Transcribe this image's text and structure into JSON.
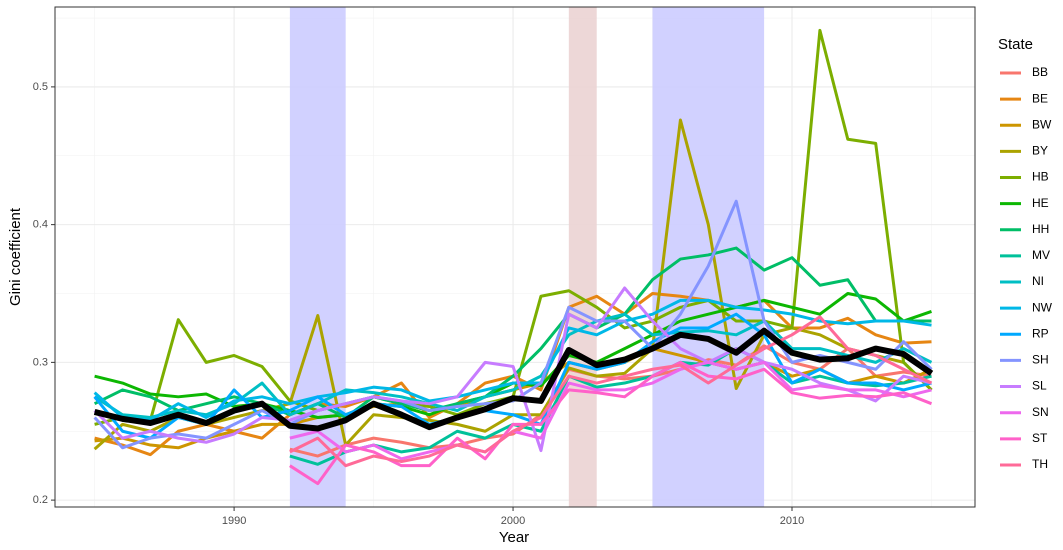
{
  "chart_data": {
    "type": "line",
    "x_label": "Year",
    "y_label": "Gini coefficient",
    "legend_title": "State",
    "legend": "right",
    "grid": true,
    "xlim": [
      1983.58,
      2016.56
    ],
    "ylim": [
      0.195,
      0.558
    ],
    "xticks": [
      1990,
      2000,
      2010
    ],
    "yticks": [
      0.2,
      0.3,
      0.4,
      0.5
    ],
    "x_minor_ticks": [
      1985,
      1995,
      2005,
      2015
    ],
    "y_minor_ticks": [
      0.25,
      0.35,
      0.45,
      0.55
    ],
    "shaded_regions": [
      {
        "xmin": 1992,
        "xmax": 1994,
        "color": "#ccccff"
      },
      {
        "xmin": 2002,
        "xmax": 2003,
        "color": "#ebd3d3"
      },
      {
        "xmin": 2005,
        "xmax": 2009,
        "color": "#ccccff"
      }
    ],
    "x": [
      1985,
      1986,
      1987,
      1988,
      1989,
      1990,
      1991,
      1992,
      1993,
      1994,
      1995,
      1996,
      1997,
      1998,
      1999,
      2000,
      2001,
      2002,
      2003,
      2004,
      2005,
      2006,
      2007,
      2008,
      2009,
      2010,
      2011,
      2012,
      2013,
      2014,
      2015
    ],
    "series": [
      {
        "name": "BB",
        "color": "#F8766D",
        "values": [
          null,
          null,
          null,
          null,
          null,
          null,
          null,
          0.237,
          0.232,
          0.24,
          0.245,
          0.242,
          0.238,
          0.24,
          0.245,
          0.248,
          0.262,
          0.295,
          0.29,
          0.288,
          0.29,
          0.295,
          0.302,
          0.298,
          0.312,
          0.3,
          0.295,
          0.31,
          0.29,
          0.293,
          0.29
        ]
      },
      {
        "name": "BE",
        "color": "#E68613",
        "values": [
          0.245,
          0.24,
          0.233,
          0.25,
          0.255,
          0.25,
          0.245,
          0.262,
          0.27,
          0.268,
          0.275,
          0.285,
          0.26,
          0.27,
          0.285,
          0.29,
          0.28,
          0.34,
          0.348,
          0.335,
          0.35,
          0.348,
          0.345,
          0.34,
          0.345,
          0.325,
          0.325,
          0.332,
          0.32,
          0.314,
          0.315
        ]
      },
      {
        "name": "BW",
        "color": "#CD9600",
        "values": [
          0.243,
          0.245,
          0.24,
          0.238,
          0.245,
          0.25,
          0.255,
          0.255,
          0.26,
          0.262,
          0.268,
          0.27,
          0.265,
          0.268,
          0.275,
          0.28,
          0.285,
          0.3,
          0.295,
          0.3,
          0.31,
          0.305,
          0.3,
          0.295,
          0.3,
          0.29,
          0.295,
          0.285,
          0.29,
          0.285,
          0.295
        ]
      },
      {
        "name": "BY",
        "color": "#ABA300",
        "values": [
          0.237,
          0.255,
          0.25,
          0.26,
          0.255,
          0.26,
          0.265,
          0.27,
          0.334,
          0.24,
          0.262,
          0.26,
          0.258,
          0.255,
          0.25,
          0.262,
          0.262,
          0.296,
          0.29,
          0.292,
          0.31,
          0.476,
          0.4,
          0.281,
          0.32,
          0.325,
          0.32,
          0.31,
          0.305,
          0.3,
          0.28
        ]
      },
      {
        "name": "HB",
        "color": "#7CAE00",
        "values": [
          0.255,
          0.26,
          0.258,
          0.331,
          0.3,
          0.305,
          0.297,
          0.272,
          0.265,
          0.27,
          0.275,
          0.27,
          0.268,
          0.262,
          0.27,
          0.275,
          0.348,
          0.352,
          0.34,
          0.325,
          0.33,
          0.34,
          0.345,
          0.33,
          0.33,
          0.325,
          0.541,
          0.462,
          0.459,
          0.3,
          0.28
        ]
      },
      {
        "name": "HE",
        "color": "#0CB702",
        "values": [
          0.29,
          0.285,
          0.277,
          0.275,
          0.277,
          0.268,
          0.27,
          0.265,
          0.26,
          0.262,
          0.27,
          0.268,
          0.262,
          0.27,
          0.275,
          0.285,
          0.283,
          0.305,
          0.3,
          0.31,
          0.32,
          0.33,
          0.335,
          0.34,
          0.345,
          0.34,
          0.335,
          0.35,
          0.346,
          0.33,
          0.337
        ]
      },
      {
        "name": "HH",
        "color": "#00BE67",
        "values": [
          0.27,
          0.28,
          0.275,
          0.265,
          0.27,
          0.275,
          0.27,
          0.262,
          0.27,
          0.26,
          0.275,
          0.27,
          0.265,
          0.27,
          0.275,
          0.29,
          0.31,
          0.335,
          0.325,
          0.335,
          0.36,
          0.375,
          0.378,
          0.383,
          0.367,
          0.376,
          0.356,
          0.36,
          0.33,
          0.33,
          0.33
        ]
      },
      {
        "name": "MV",
        "color": "#00C19A",
        "values": [
          null,
          null,
          null,
          null,
          null,
          null,
          null,
          0.232,
          0.226,
          0.235,
          0.24,
          0.235,
          0.238,
          0.25,
          0.245,
          0.255,
          0.25,
          0.29,
          0.282,
          0.285,
          0.29,
          0.3,
          0.298,
          0.31,
          0.3,
          0.285,
          0.29,
          0.285,
          0.283,
          0.285,
          0.29
        ]
      },
      {
        "name": "NI",
        "color": "#00BFC4",
        "values": [
          0.275,
          0.262,
          0.26,
          0.265,
          0.262,
          0.27,
          0.285,
          0.262,
          0.27,
          0.28,
          0.278,
          0.275,
          0.27,
          0.265,
          0.275,
          0.28,
          0.29,
          0.32,
          0.33,
          0.335,
          0.32,
          0.322,
          0.323,
          0.32,
          0.33,
          0.31,
          0.31,
          0.305,
          0.3,
          0.31,
          0.3
        ]
      },
      {
        "name": "NW",
        "color": "#00B8E7",
        "values": [
          0.278,
          0.26,
          0.258,
          0.27,
          0.26,
          0.272,
          0.275,
          0.27,
          0.275,
          0.278,
          0.282,
          0.28,
          0.272,
          0.275,
          0.28,
          0.285,
          0.285,
          0.325,
          0.32,
          0.33,
          0.335,
          0.345,
          0.345,
          0.34,
          0.338,
          0.335,
          0.33,
          0.328,
          0.33,
          0.33,
          0.327
        ]
      },
      {
        "name": "RP",
        "color": "#00A9FF",
        "values": [
          0.275,
          0.25,
          0.245,
          0.26,
          0.255,
          0.28,
          0.26,
          0.265,
          0.275,
          0.262,
          0.27,
          0.268,
          0.255,
          0.26,
          0.265,
          0.262,
          0.255,
          0.3,
          0.295,
          0.3,
          0.315,
          0.325,
          0.325,
          0.335,
          0.32,
          0.285,
          0.295,
          0.285,
          0.285,
          0.28,
          0.285
        ]
      },
      {
        "name": "SH",
        "color": "#8494FF",
        "values": [
          0.26,
          0.238,
          0.245,
          0.248,
          0.245,
          0.255,
          0.265,
          0.255,
          0.265,
          0.27,
          0.275,
          0.272,
          0.265,
          0.268,
          0.27,
          0.272,
          0.285,
          0.34,
          0.33,
          0.33,
          0.31,
          0.335,
          0.37,
          0.417,
          0.33,
          0.3,
          0.305,
          0.3,
          0.295,
          0.315,
          0.295
        ]
      },
      {
        "name": "SL",
        "color": "#C77CFF",
        "values": [
          0.265,
          0.245,
          0.25,
          0.245,
          0.242,
          0.248,
          0.26,
          0.258,
          0.265,
          0.27,
          0.275,
          0.272,
          0.27,
          0.275,
          0.3,
          0.297,
          0.236,
          0.335,
          0.325,
          0.354,
          0.33,
          0.31,
          0.3,
          0.31,
          0.3,
          0.295,
          0.285,
          0.28,
          0.272,
          0.29,
          0.285
        ]
      },
      {
        "name": "SN",
        "color": "#ED68ED",
        "values": [
          null,
          null,
          null,
          null,
          null,
          null,
          null,
          0.245,
          0.25,
          0.235,
          0.24,
          0.23,
          0.235,
          0.24,
          0.235,
          0.25,
          0.245,
          0.285,
          0.28,
          0.28,
          0.285,
          0.295,
          0.3,
          0.295,
          0.3,
          0.28,
          0.283,
          0.28,
          0.28,
          0.275,
          0.28
        ]
      },
      {
        "name": "ST",
        "color": "#FF61C9",
        "values": [
          null,
          null,
          null,
          null,
          null,
          null,
          null,
          0.225,
          0.212,
          0.24,
          0.235,
          0.225,
          0.225,
          0.245,
          0.23,
          0.255,
          0.255,
          0.28,
          0.278,
          0.275,
          0.29,
          0.3,
          0.29,
          0.288,
          0.295,
          0.278,
          0.274,
          0.276,
          0.275,
          0.278,
          0.27
        ]
      },
      {
        "name": "TH",
        "color": "#FF6A98",
        "values": [
          null,
          null,
          null,
          null,
          null,
          null,
          null,
          0.235,
          0.245,
          0.225,
          0.232,
          0.228,
          0.232,
          0.24,
          0.235,
          0.25,
          0.26,
          0.29,
          0.285,
          0.29,
          0.295,
          0.298,
          0.285,
          0.298,
          0.31,
          0.32,
          0.333,
          0.31,
          0.305,
          0.295,
          0.285
        ]
      }
    ],
    "mean_line": {
      "color": "#000000",
      "values": [
        0.264,
        0.259,
        0.256,
        0.262,
        0.256,
        0.265,
        0.27,
        0.254,
        0.252,
        0.258,
        0.27,
        0.262,
        0.253,
        0.26,
        0.266,
        0.274,
        0.272,
        0.309,
        0.298,
        0.302,
        0.31,
        0.32,
        0.317,
        0.307,
        0.323,
        0.307,
        0.302,
        0.303,
        0.31,
        0.306,
        0.292
      ]
    }
  }
}
